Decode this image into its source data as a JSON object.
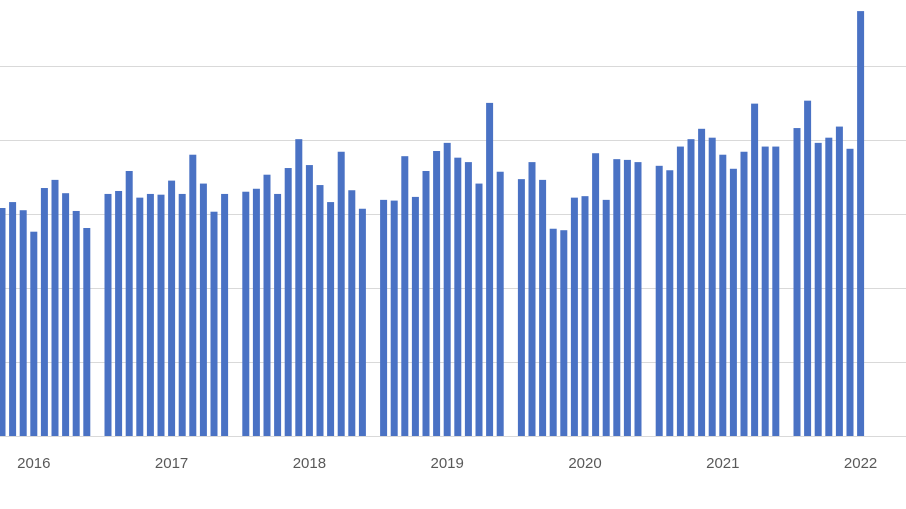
{
  "chart_data": {
    "type": "bar",
    "color": "#4a72c4",
    "grid": true,
    "ylim": [
      0,
      5.89
    ],
    "gridlines": [
      0,
      1,
      2,
      3,
      4,
      5
    ],
    "categories": [
      null,
      null,
      null,
      "2016",
      null,
      null,
      null,
      null,
      null,
      null,
      null,
      null,
      null,
      null,
      null,
      null,
      "2017",
      null,
      null,
      null,
      null,
      null,
      null,
      null,
      null,
      null,
      null,
      null,
      null,
      "2018",
      null,
      null,
      null,
      null,
      null,
      null,
      null,
      null,
      null,
      null,
      null,
      null,
      "2019",
      null,
      null,
      null,
      null,
      null,
      null,
      null,
      null,
      null,
      null,
      null,
      null,
      "2020",
      null,
      null,
      null,
      null,
      null,
      null,
      null,
      null,
      null,
      null,
      null,
      null,
      "2021",
      null,
      null,
      null,
      null,
      null,
      null,
      null,
      null,
      null,
      null,
      null,
      null,
      "2022"
    ],
    "values": [
      3.08,
      3.16,
      3.05,
      2.76,
      3.35,
      3.46,
      3.28,
      3.04,
      2.81,
      null,
      3.27,
      3.31,
      3.58,
      3.22,
      3.27,
      3.26,
      3.45,
      3.27,
      3.8,
      3.41,
      3.03,
      3.27,
      null,
      3.3,
      3.34,
      3.53,
      3.27,
      3.62,
      4.01,
      3.66,
      3.39,
      3.16,
      3.84,
      3.32,
      3.07,
      null,
      3.19,
      3.18,
      3.78,
      3.23,
      3.58,
      3.85,
      3.96,
      3.76,
      3.7,
      3.41,
      4.5,
      3.57,
      null,
      3.47,
      3.7,
      3.46,
      2.8,
      2.78,
      3.22,
      3.24,
      3.82,
      3.19,
      3.74,
      3.73,
      3.7,
      null,
      3.65,
      3.59,
      3.91,
      4.01,
      4.15,
      4.03,
      3.8,
      3.61,
      3.84,
      4.49,
      3.91,
      3.91,
      null,
      4.16,
      4.53,
      3.96,
      4.03,
      4.18,
      3.88,
      5.74
    ]
  }
}
